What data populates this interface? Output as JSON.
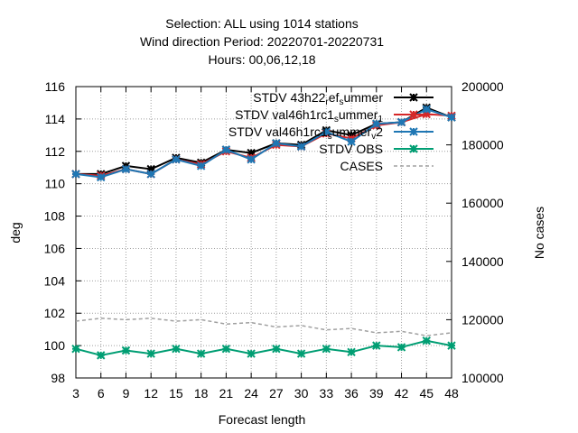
{
  "chart_data": {
    "type": "line",
    "title": [
      "Selection: ALL using  1014 stations",
      "Wind direction   Period: 20220701-20220731",
      "Hours:  00,06,12,18"
    ],
    "xlabel": "Forecast length",
    "ylabel": "deg",
    "y2label": "No cases",
    "x": [
      3,
      6,
      9,
      12,
      15,
      18,
      21,
      24,
      27,
      30,
      33,
      36,
      39,
      42,
      45,
      48
    ],
    "xlim": [
      3,
      48
    ],
    "ylim": [
      98,
      116
    ],
    "y2lim": [
      100000,
      200000
    ],
    "yticks": [
      98,
      100,
      102,
      104,
      106,
      108,
      110,
      112,
      114,
      116
    ],
    "y2ticks": [
      100000,
      120000,
      140000,
      160000,
      180000,
      200000
    ],
    "grid": true,
    "legend_position": "top-right",
    "series": [
      {
        "name": "STDV 43h22_ref_summer",
        "legend_parts": [
          {
            "t": "STDV 43h22"
          },
          {
            "t": "r",
            "sub": true
          },
          {
            "t": "ef"
          },
          {
            "t": "s",
            "sub": true
          },
          {
            "t": "ummer"
          }
        ],
        "color": "#000000",
        "marker": "star",
        "axis": "y1",
        "values": [
          110.6,
          110.6,
          111.1,
          110.9,
          111.6,
          111.3,
          112.1,
          111.9,
          112.5,
          112.4,
          113.3,
          113.0,
          113.7,
          113.8,
          114.7,
          114.1
        ]
      },
      {
        "name": "STDV val46h1rc1_summer_1",
        "legend_parts": [
          {
            "t": "STDV val46h1rc1"
          },
          {
            "t": "s",
            "sub": true
          },
          {
            "t": "ummer"
          },
          {
            "t": "1",
            "sub": true
          }
        ],
        "color": "#d62728",
        "marker": "star",
        "axis": "y1",
        "values": [
          110.6,
          110.5,
          110.9,
          110.6,
          111.5,
          111.2,
          112.0,
          111.6,
          112.4,
          112.3,
          113.1,
          112.8,
          113.6,
          113.8,
          114.3,
          114.2
        ]
      },
      {
        "name": "STDV val46h1rc1_summer_v2",
        "legend_parts": [
          {
            "t": "STDV val46h1rc1"
          },
          {
            "t": "s",
            "sub": true
          },
          {
            "t": "ummer"
          },
          {
            "t": "v",
            "sub": true
          },
          {
            "t": "2"
          }
        ],
        "color": "#1f77b4",
        "marker": "star",
        "axis": "y1",
        "values": [
          110.6,
          110.4,
          110.9,
          110.6,
          111.5,
          111.1,
          112.1,
          111.5,
          112.5,
          112.3,
          113.2,
          112.6,
          113.7,
          113.8,
          114.6,
          114.1
        ]
      },
      {
        "name": "STDV OBS",
        "legend_parts": [
          {
            "t": "STDV OBS"
          }
        ],
        "color": "#009e73",
        "marker": "star",
        "axis": "y1",
        "values": [
          99.8,
          99.4,
          99.7,
          99.5,
          99.8,
          99.5,
          99.8,
          99.5,
          99.8,
          99.5,
          99.8,
          99.6,
          100.0,
          99.9,
          100.3,
          100.0
        ]
      },
      {
        "name": "CASES",
        "legend_parts": [
          {
            "t": "CASES"
          }
        ],
        "color": "#a0a0a0",
        "marker": "none",
        "dashed": true,
        "axis": "y2",
        "values": [
          119500,
          120500,
          120000,
          120500,
          119500,
          120000,
          118500,
          119000,
          117500,
          118000,
          116500,
          117000,
          115500,
          116000,
          114500,
          115500
        ]
      }
    ]
  }
}
